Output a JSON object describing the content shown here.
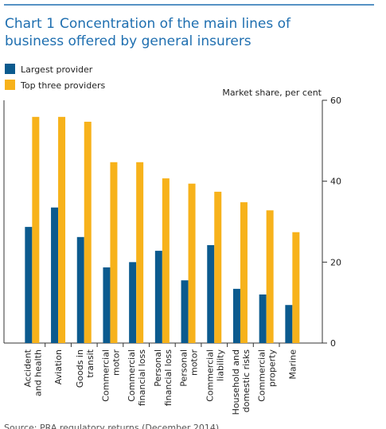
{
  "chart_data": {
    "type": "bar",
    "title_prefix": "Chart 1",
    "title": "Concentration of the main lines of business offered by general insurers",
    "y_axis_label": "Market share, per cent",
    "source": "Source: PRA regulatory returns (December 2014).",
    "categories": [
      "Accident and health",
      "Aviation",
      "Goods in transit",
      "Commercial motor",
      "Commercial financial loss",
      "Personal financial loss",
      "Personal motor",
      "Commercial liability",
      "Household and domestic risks",
      "Commercial property",
      "Marine"
    ],
    "series": [
      {
        "name": "Largest provider",
        "color": "#0b5a8e",
        "values": [
          28.7,
          33.5,
          26.2,
          18.7,
          20,
          22.8,
          15.5,
          24.2,
          13.4,
          12,
          9.4
        ]
      },
      {
        "name": "Top three providers",
        "color": "#f7b21b",
        "values": [
          55.9,
          55.9,
          54.7,
          44.7,
          44.7,
          40.7,
          39.4,
          37.4,
          34.8,
          32.8,
          27.4
        ]
      }
    ],
    "ylim": [
      0,
      60
    ],
    "yticks": [
      0,
      20,
      40,
      60
    ],
    "legend": "top-left",
    "grid": false
  }
}
